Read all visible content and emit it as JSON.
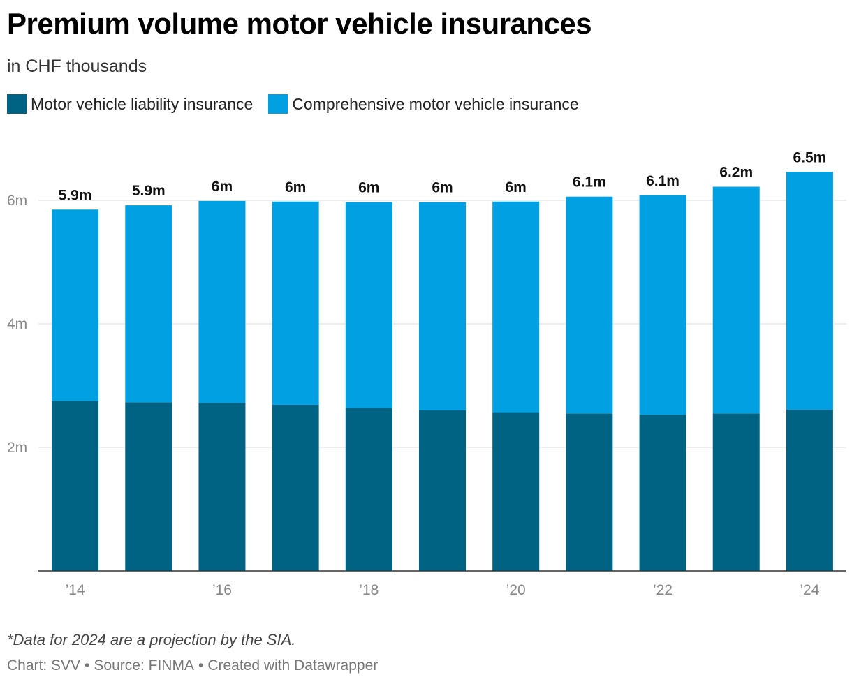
{
  "header": {
    "title": "Premium volume motor vehicle insurances",
    "subtitle": "in CHF thousands"
  },
  "legend": {
    "items": [
      {
        "label": "Motor vehicle liability insurance",
        "color": "#006384"
      },
      {
        "label": "Comprehensive motor vehicle insurance",
        "color": "#00a0e2"
      }
    ]
  },
  "chart_data": {
    "type": "bar",
    "stacked": true,
    "categories": [
      "2014",
      "2015",
      "2016",
      "2017",
      "2018",
      "2019",
      "2020",
      "2021",
      "2022",
      "2023",
      "2024"
    ],
    "x_tick_labels": [
      "’14",
      "’16",
      "’18",
      "’20",
      "’22",
      "’24"
    ],
    "x_tick_indices": [
      0,
      2,
      4,
      6,
      8,
      10
    ],
    "series": [
      {
        "name": "Motor vehicle liability insurance",
        "color": "#006384",
        "values": [
          2.75,
          2.73,
          2.72,
          2.69,
          2.64,
          2.6,
          2.56,
          2.55,
          2.53,
          2.55,
          2.61
        ]
      },
      {
        "name": "Comprehensive motor vehicle insurance",
        "color": "#00a0e2",
        "values": [
          3.1,
          3.19,
          3.27,
          3.29,
          3.33,
          3.37,
          3.42,
          3.51,
          3.55,
          3.67,
          3.85
        ]
      }
    ],
    "totals_labels": [
      "5.9m",
      "5.9m",
      "6m",
      "6m",
      "6m",
      "6m",
      "6m",
      "6.1m",
      "6.1m",
      "6.2m",
      "6.5m"
    ],
    "y_ticks": [
      2,
      4,
      6
    ],
    "y_tick_labels": [
      "2m",
      "4m",
      "6m"
    ],
    "ylim": [
      0,
      6.5
    ],
    "grid": true
  },
  "footer": {
    "note": "*Data for 2024 are a projection by the SIA.",
    "chart_credit": "Chart: SVV",
    "source": "Source: FINMA",
    "created_with": "Created with Datawrapper",
    "separator": "•"
  }
}
